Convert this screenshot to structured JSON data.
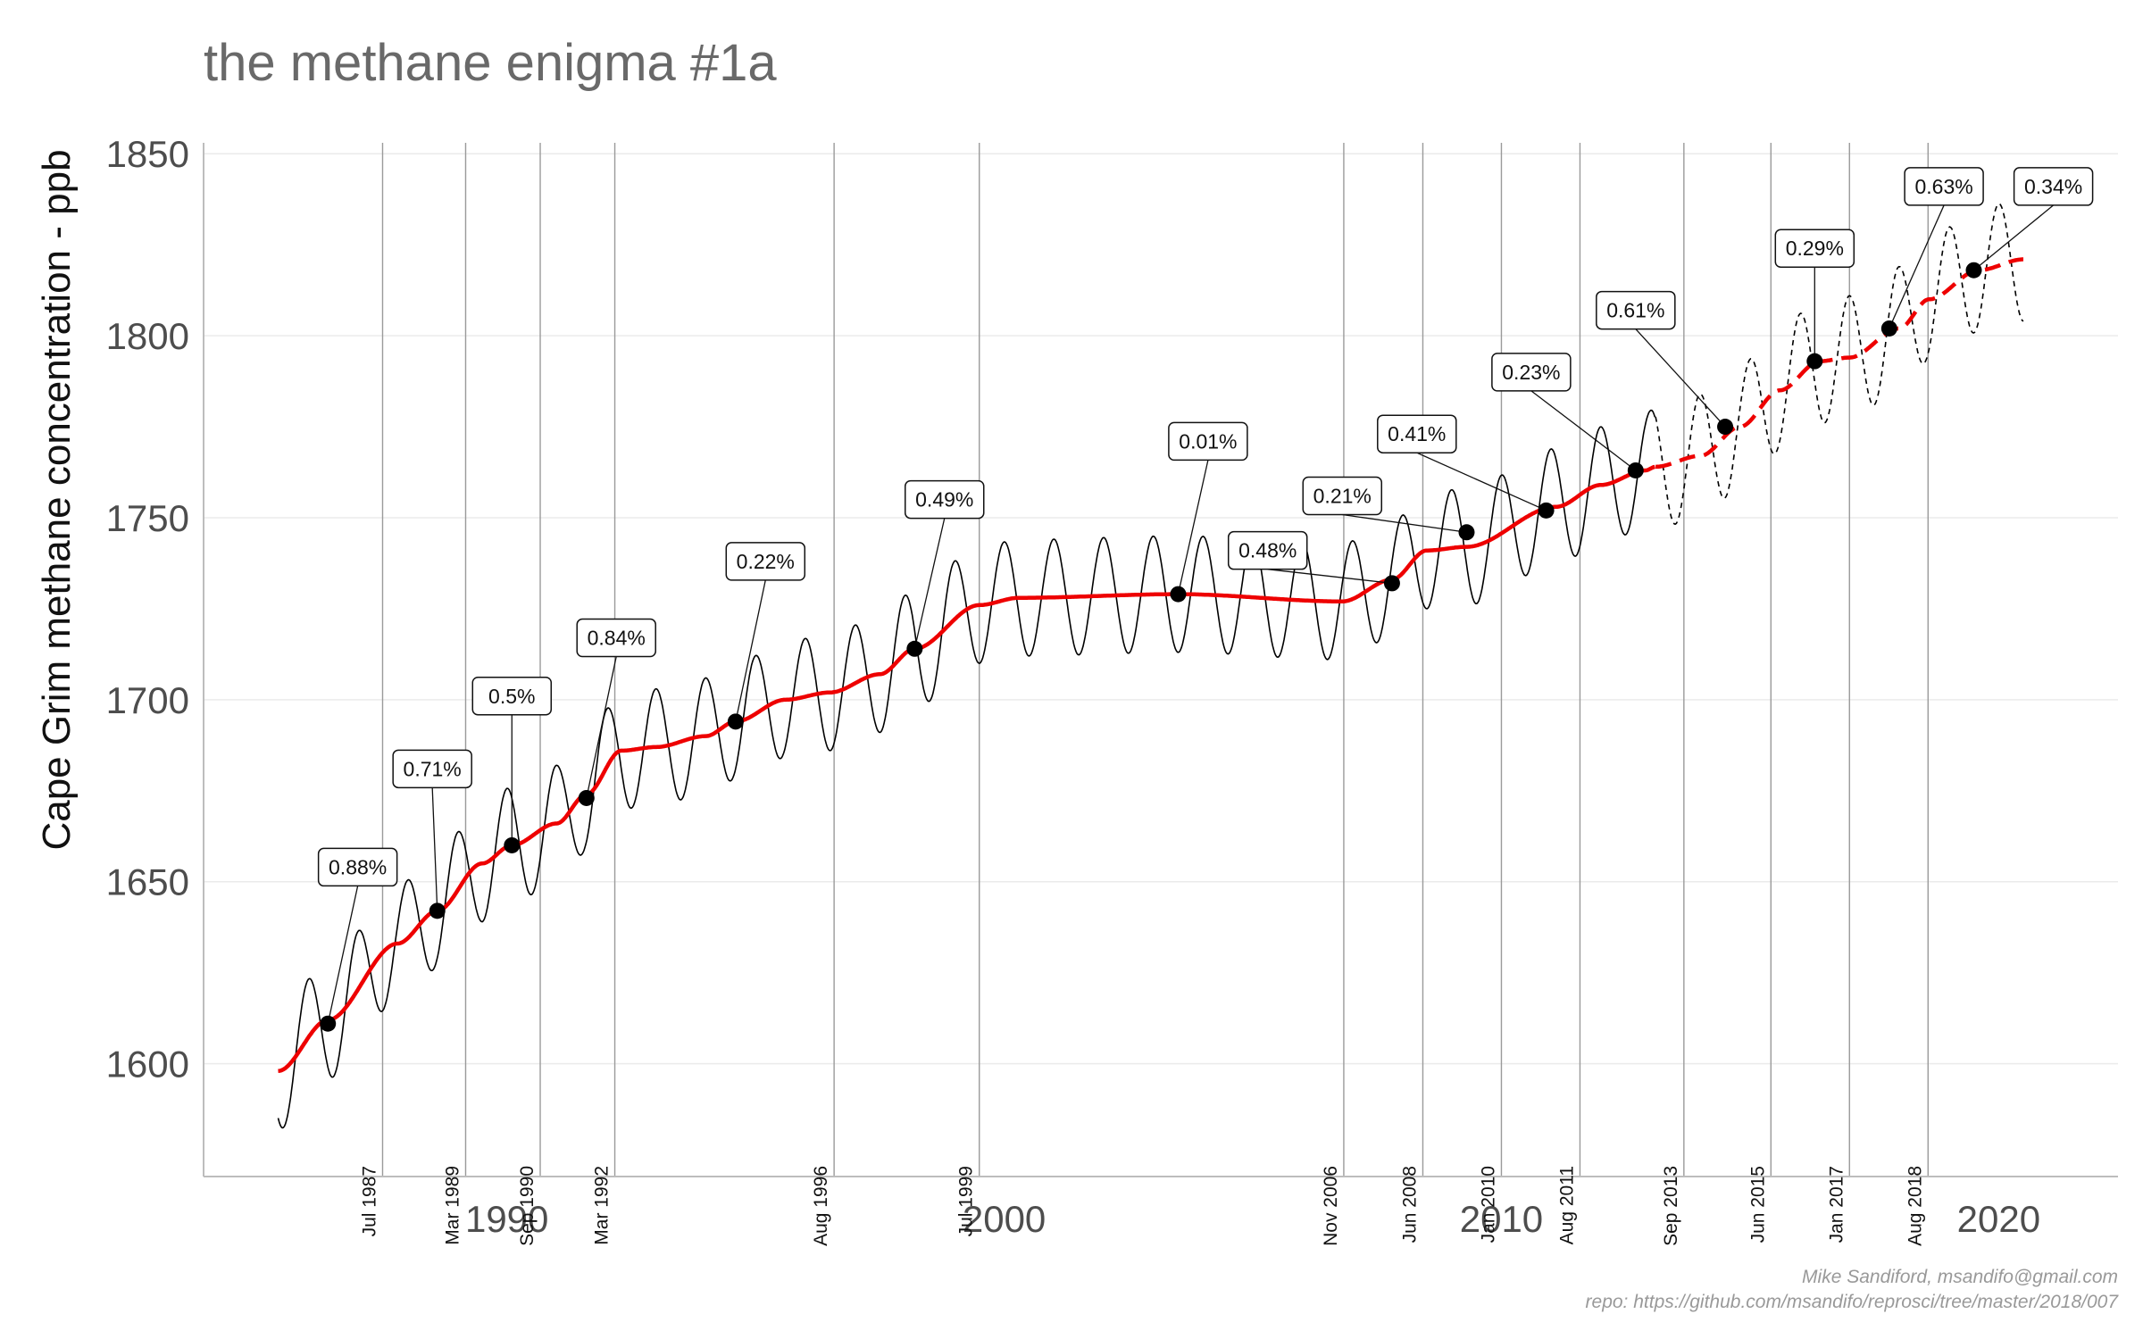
{
  "chart_data": {
    "type": "line",
    "title": "the methane enigma #1a",
    "ylabel": "Cape Grim methane concentration - ppb",
    "xlim": [
      1983.9,
      2022.4
    ],
    "ylim": [
      1569,
      1853
    ],
    "x_ticks": [
      1990,
      2000,
      2010,
      2020
    ],
    "y_ticks": [
      1600,
      1650,
      1700,
      1750,
      1800,
      1850
    ],
    "grid": true,
    "legend": "none",
    "colors": {
      "trend": "#ee0000",
      "series": "#000000",
      "vline": "#9a9a9a",
      "grid": "#ebebeb"
    },
    "observed": {
      "x_start": 1985.4,
      "x_end": 2013.1,
      "trend_start": 1598,
      "trend_knots": [
        [
          1985.4,
          1598
        ],
        [
          1986.4,
          1612
        ],
        [
          1987.8,
          1633
        ],
        [
          1988.6,
          1642
        ],
        [
          1989.5,
          1655
        ],
        [
          1990.1,
          1660
        ],
        [
          1991.0,
          1666
        ],
        [
          1991.6,
          1674
        ],
        [
          1992.3,
          1686
        ],
        [
          1993.0,
          1687
        ],
        [
          1994.0,
          1690
        ],
        [
          1994.6,
          1694
        ],
        [
          1995.6,
          1700
        ],
        [
          1996.5,
          1702
        ],
        [
          1997.5,
          1707
        ],
        [
          1998.2,
          1714
        ],
        [
          1999.5,
          1726
        ],
        [
          2000.3,
          1728
        ],
        [
          2003.5,
          1729
        ],
        [
          2006.8,
          1727
        ],
        [
          2007.8,
          1733
        ],
        [
          2008.5,
          1741
        ],
        [
          2009.3,
          1742
        ],
        [
          2011.1,
          1753
        ],
        [
          2012.0,
          1759
        ],
        [
          2012.9,
          1763
        ],
        [
          2013.1,
          1764
        ]
      ],
      "seasonal_amplitude": 16
    },
    "projected": {
      "x_start": 2013.1,
      "x_end": 2020.5,
      "trend_knots": [
        [
          2013.1,
          1764
        ],
        [
          2014.0,
          1767
        ],
        [
          2014.8,
          1775
        ],
        [
          2015.6,
          1785
        ],
        [
          2016.4,
          1793
        ],
        [
          2017.0,
          1794
        ],
        [
          2018.0,
          1802
        ],
        [
          2018.6,
          1810
        ],
        [
          2019.6,
          1818
        ],
        [
          2020.5,
          1821
        ]
      ],
      "seasonal_amplitude": 17
    },
    "change_points": [
      {
        "date": "Jul 1987",
        "x": 1987.5
      },
      {
        "date": "Mar 1989",
        "x": 1989.17
      },
      {
        "date": "Sep 1990",
        "x": 1990.67
      },
      {
        "date": "Mar 1992",
        "x": 1992.17
      },
      {
        "date": "Aug 1996",
        "x": 1996.58
      },
      {
        "date": "Jul 1999",
        "x": 1999.5
      },
      {
        "date": "Nov 2006",
        "x": 2006.83
      },
      {
        "date": "Jun 2008",
        "x": 2008.42
      },
      {
        "date": "Jan 2010",
        "x": 2010.0
      },
      {
        "date": "Aug 2011",
        "x": 2011.58
      },
      {
        "date": "Sep 2013",
        "x": 2013.67
      },
      {
        "date": "Jun 2015",
        "x": 2015.42
      },
      {
        "date": "Jan 2017",
        "x": 2017.0
      },
      {
        "date": "Aug 2018",
        "x": 2018.58
      }
    ],
    "annotations": [
      {
        "text": "0.88%",
        "x": 1986.4,
        "y": 1611,
        "label_x": 1987.0,
        "label_y": 1654
      },
      {
        "text": "0.71%",
        "x": 1988.6,
        "y": 1642,
        "label_x": 1988.5,
        "label_y": 1681
      },
      {
        "text": "0.5%",
        "x": 1990.1,
        "y": 1660,
        "label_x": 1990.1,
        "label_y": 1701
      },
      {
        "text": "0.84%",
        "x": 1991.6,
        "y": 1673,
        "label_x": 1992.2,
        "label_y": 1717
      },
      {
        "text": "0.22%",
        "x": 1994.6,
        "y": 1694,
        "label_x": 1995.2,
        "label_y": 1738
      },
      {
        "text": "0.49%",
        "x": 1998.2,
        "y": 1714,
        "label_x": 1998.8,
        "label_y": 1755
      },
      {
        "text": "0.01%",
        "x": 2003.5,
        "y": 1729,
        "label_x": 2004.1,
        "label_y": 1771
      },
      {
        "text": "0.48%",
        "x": 2007.8,
        "y": 1732,
        "label_x": 2005.3,
        "label_y": 1741
      },
      {
        "text": "0.21%",
        "x": 2009.3,
        "y": 1746,
        "label_x": 2006.8,
        "label_y": 1756
      },
      {
        "text": "0.41%",
        "x": 2010.9,
        "y": 1752,
        "label_x": 2008.3,
        "label_y": 1773
      },
      {
        "text": "0.23%",
        "x": 2012.7,
        "y": 1763,
        "label_x": 2010.6,
        "label_y": 1790
      },
      {
        "text": "0.61%",
        "x": 2014.5,
        "y": 1775,
        "label_x": 2012.7,
        "label_y": 1807
      },
      {
        "text": "0.29%",
        "x": 2016.3,
        "y": 1793,
        "label_x": 2016.3,
        "label_y": 1824
      },
      {
        "text": "0.63%",
        "x": 2017.8,
        "y": 1802,
        "label_x": 2018.9,
        "label_y": 1841
      },
      {
        "text": "0.34%",
        "x": 2019.5,
        "y": 1818,
        "label_x": 2021.1,
        "label_y": 1841
      }
    ]
  },
  "caption": {
    "author": "Mike Sandiford, msandifo@gmail.com",
    "repo": "repo: https://github.com/msandifo/reprosci/tree/master/2018/007"
  }
}
